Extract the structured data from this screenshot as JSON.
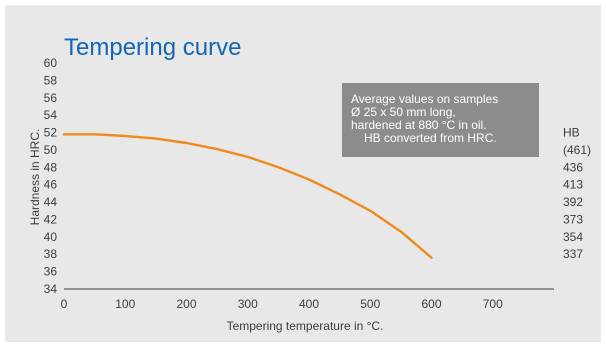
{
  "chart_data": {
    "type": "line",
    "title": "Tempering curve",
    "xlabel": "Tempering temperature in °C.",
    "ylabel": "Hardness in HRC.",
    "xlim": [
      0,
      800
    ],
    "ylim": [
      34,
      60
    ],
    "x_ticks": [
      0,
      100,
      200,
      300,
      400,
      500,
      600,
      700
    ],
    "y_ticks": [
      34,
      36,
      38,
      40,
      42,
      44,
      46,
      48,
      50,
      52,
      54,
      56,
      58,
      60
    ],
    "secondary_axis": {
      "label": "HB",
      "ticks": [
        {
          "hrc": 50,
          "text": "(461)"
        },
        {
          "hrc": 48,
          "text": "436"
        },
        {
          "hrc": 46,
          "text": "413"
        },
        {
          "hrc": 44,
          "text": "392"
        },
        {
          "hrc": 42,
          "text": "373"
        },
        {
          "hrc": 40,
          "text": "354"
        },
        {
          "hrc": 38,
          "text": "337"
        }
      ]
    },
    "series": [
      {
        "color": "#f08a1c",
        "x": [
          0,
          50,
          100,
          150,
          200,
          250,
          300,
          350,
          400,
          450,
          500,
          550,
          600
        ],
        "y": [
          51.8,
          51.8,
          51.6,
          51.3,
          50.8,
          50.1,
          49.2,
          48.0,
          46.6,
          44.9,
          43.0,
          40.6,
          37.6
        ]
      }
    ],
    "annotation": {
      "lines": [
        "Average values on samples",
        "Ø 25 x 50 mm long,",
        "hardened at 880 °C in oil.",
        "HB converted from HRC."
      ],
      "background": "#8c8c8c"
    },
    "grid": false,
    "colors": {
      "title": "#1565b5",
      "panel": "#e8e8e8",
      "axis": "#3c3c3c",
      "line": "#f08a1c"
    }
  }
}
